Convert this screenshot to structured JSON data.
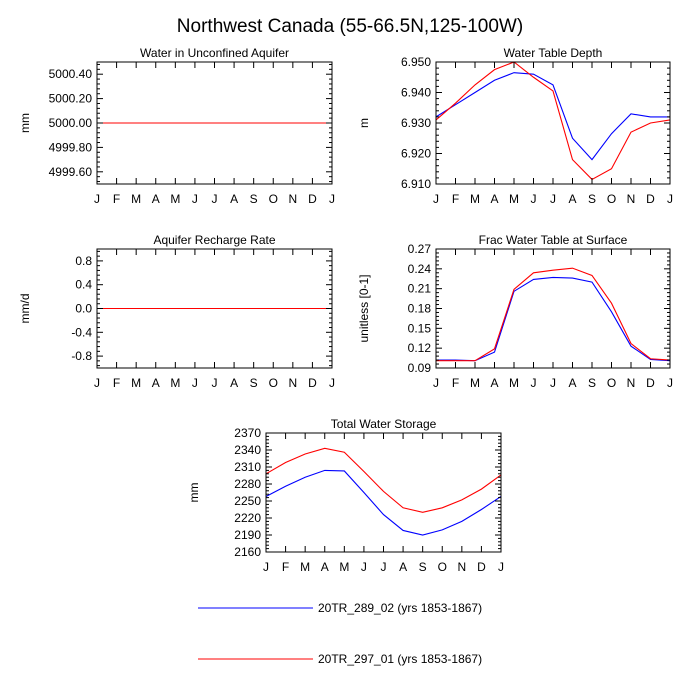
{
  "figure_title": "Northwest Canada (55-66.5N,125-100W)",
  "colors": {
    "series_1": "#0000ff",
    "series_2": "#ff0000",
    "axis": "#000000"
  },
  "legend": [
    {
      "label": "20TR_289_02 (yrs 1853-1867)",
      "color": "#0000ff"
    },
    {
      "label": "20TR_297_01 (yrs 1853-1867)",
      "color": "#ff0000"
    }
  ],
  "chart_data": [
    {
      "type": "line",
      "title": "Water in Unconfined Aquifer",
      "xlabel": "",
      "ylabel": "mm",
      "categories": [
        "J",
        "F",
        "M",
        "A",
        "M",
        "J",
        "J",
        "A",
        "S",
        "O",
        "N",
        "D",
        "J"
      ],
      "ylim": [
        4999.5,
        5000.5
      ],
      "yticks": [
        4999.6,
        4999.8,
        5000.0,
        5000.2,
        5000.4
      ],
      "yticklabels": [
        "4999.60",
        "4999.80",
        "5000.00",
        "5000.20",
        "5000.40"
      ],
      "grid": false,
      "series": [
        {
          "name": "20TR_289_02 (yrs 1853-1867)",
          "values": [
            5000.0,
            5000.0,
            5000.0,
            5000.0,
            5000.0,
            5000.0,
            5000.0,
            5000.0,
            5000.0,
            5000.0,
            5000.0,
            5000.0,
            5000.0
          ]
        },
        {
          "name": "20TR_297_01 (yrs 1853-1867)",
          "values": [
            5000.0,
            5000.0,
            5000.0,
            5000.0,
            5000.0,
            5000.0,
            5000.0,
            5000.0,
            5000.0,
            5000.0,
            5000.0,
            5000.0,
            5000.0
          ]
        }
      ]
    },
    {
      "type": "line",
      "title": "Water Table Depth",
      "xlabel": "",
      "ylabel": "m",
      "categories": [
        "J",
        "F",
        "M",
        "A",
        "M",
        "J",
        "J",
        "A",
        "S",
        "O",
        "N",
        "D",
        "J"
      ],
      "ylim": [
        6.91,
        6.95
      ],
      "yticks": [
        6.91,
        6.92,
        6.93,
        6.94,
        6.95
      ],
      "yticklabels": [
        "6.910",
        "6.920",
        "6.930",
        "6.940",
        "6.950"
      ],
      "grid": false,
      "series": [
        {
          "name": "20TR_289_02 (yrs 1853-1867)",
          "values": [
            6.932,
            6.936,
            6.94,
            6.944,
            6.9465,
            6.946,
            6.9425,
            6.925,
            6.918,
            6.9265,
            6.933,
            6.932,
            6.932
          ]
        },
        {
          "name": "20TR_297_01 (yrs 1853-1867)",
          "values": [
            6.931,
            6.9365,
            6.9425,
            6.9475,
            6.95,
            6.945,
            6.9405,
            6.918,
            6.9115,
            6.915,
            6.927,
            6.93,
            6.931
          ]
        }
      ]
    },
    {
      "type": "line",
      "title": "Aquifer Recharge Rate",
      "xlabel": "",
      "ylabel": "mm/d",
      "categories": [
        "J",
        "F",
        "M",
        "A",
        "M",
        "J",
        "J",
        "A",
        "S",
        "O",
        "N",
        "D",
        "J"
      ],
      "ylim": [
        -1.0,
        1.0
      ],
      "yticks": [
        -0.8,
        -0.4,
        0.0,
        0.4,
        0.8
      ],
      "yticklabels": [
        "-0.8",
        "-0.4",
        "0.0",
        "0.4",
        "0.8"
      ],
      "grid": false,
      "series": [
        {
          "name": "20TR_289_02 (yrs 1853-1867)",
          "values": [
            0,
            0,
            0,
            0,
            0,
            0,
            0,
            0,
            0,
            0,
            0,
            0,
            0
          ]
        },
        {
          "name": "20TR_297_01 (yrs 1853-1867)",
          "values": [
            0,
            0,
            0,
            0,
            0,
            0,
            0,
            0,
            0,
            0,
            0,
            0,
            0
          ]
        }
      ]
    },
    {
      "type": "line",
      "title": "Frac Water Table at Surface",
      "xlabel": "",
      "ylabel": "unitless [0-1]",
      "categories": [
        "J",
        "F",
        "M",
        "A",
        "M",
        "J",
        "J",
        "A",
        "S",
        "O",
        "N",
        "D",
        "J"
      ],
      "ylim": [
        0.09,
        0.27
      ],
      "yticks": [
        0.09,
        0.12,
        0.15,
        0.18,
        0.21,
        0.24,
        0.27
      ],
      "yticklabels": [
        "0.09",
        "0.12",
        "0.15",
        "0.18",
        "0.21",
        "0.24",
        "0.27"
      ],
      "grid": false,
      "series": [
        {
          "name": "20TR_289_02 (yrs 1853-1867)",
          "values": [
            0.102,
            0.102,
            0.101,
            0.114,
            0.206,
            0.224,
            0.227,
            0.226,
            0.22,
            0.175,
            0.123,
            0.103,
            0.101
          ]
        },
        {
          "name": "20TR_297_01 (yrs 1853-1867)",
          "values": [
            0.101,
            0.101,
            0.101,
            0.119,
            0.209,
            0.234,
            0.238,
            0.241,
            0.23,
            0.188,
            0.127,
            0.104,
            0.102
          ]
        }
      ]
    },
    {
      "type": "line",
      "title": "Total Water Storage",
      "xlabel": "",
      "ylabel": "mm",
      "categories": [
        "J",
        "F",
        "M",
        "A",
        "M",
        "J",
        "J",
        "A",
        "S",
        "O",
        "N",
        "D",
        "J"
      ],
      "ylim": [
        2160,
        2370
      ],
      "yticks": [
        2160,
        2190,
        2220,
        2250,
        2280,
        2310,
        2340,
        2370
      ],
      "yticklabels": [
        "2160",
        "2190",
        "2220",
        "2250",
        "2280",
        "2310",
        "2340",
        "2370"
      ],
      "grid": false,
      "series": [
        {
          "name": "20TR_289_02 (yrs 1853-1867)",
          "values": [
            2258,
            2276,
            2292,
            2304,
            2303,
            2265,
            2226,
            2198,
            2190,
            2199,
            2214,
            2235,
            2258
          ]
        },
        {
          "name": "20TR_297_01 (yrs 1853-1867)",
          "values": [
            2298,
            2318,
            2333,
            2343,
            2336,
            2302,
            2267,
            2238,
            2230,
            2238,
            2252,
            2271,
            2296
          ]
        }
      ]
    }
  ]
}
